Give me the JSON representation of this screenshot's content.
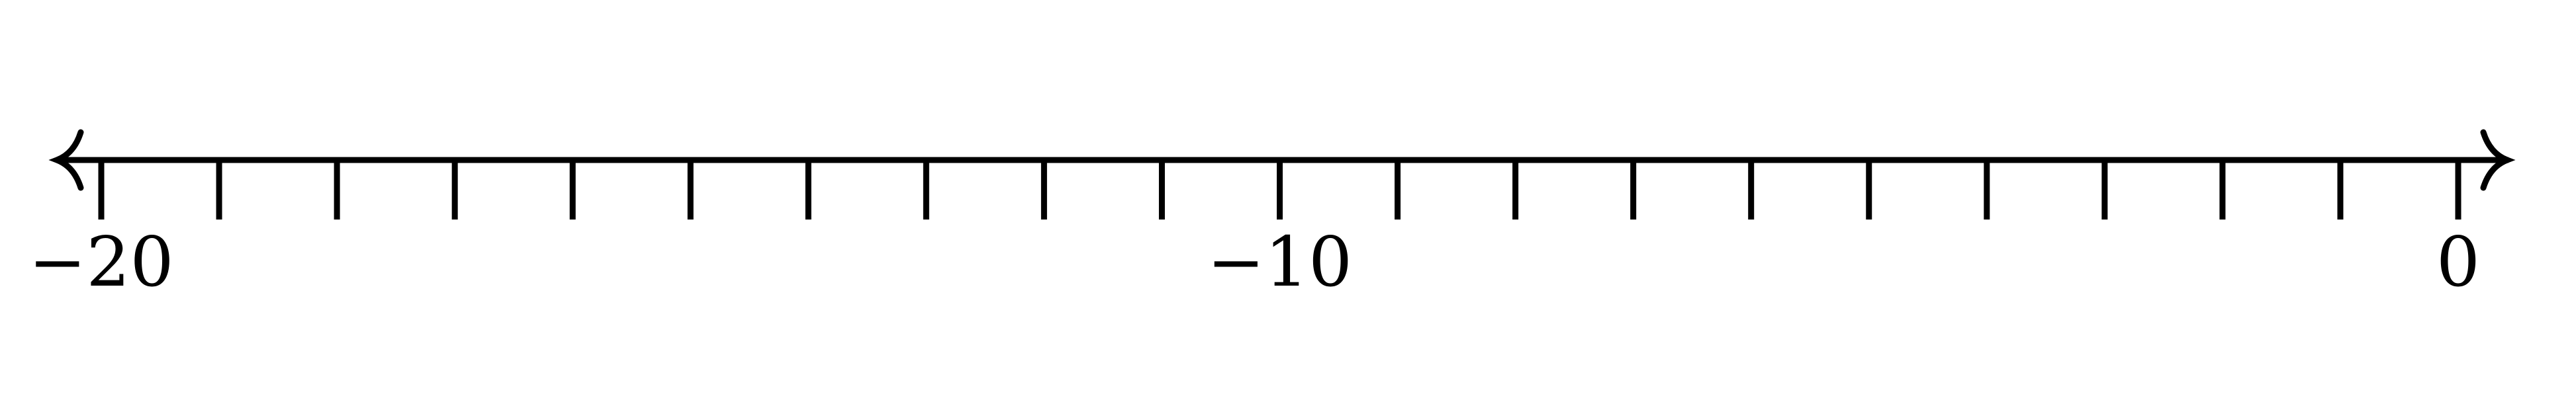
{
  "number_line": {
    "min": -20,
    "max": 0,
    "step": 1,
    "arrows": "both",
    "labels": [
      {
        "value": -20,
        "text": "−20"
      },
      {
        "value": -10,
        "text": "−10"
      },
      {
        "value": 0,
        "text": "0"
      }
    ],
    "color": "#000000"
  }
}
